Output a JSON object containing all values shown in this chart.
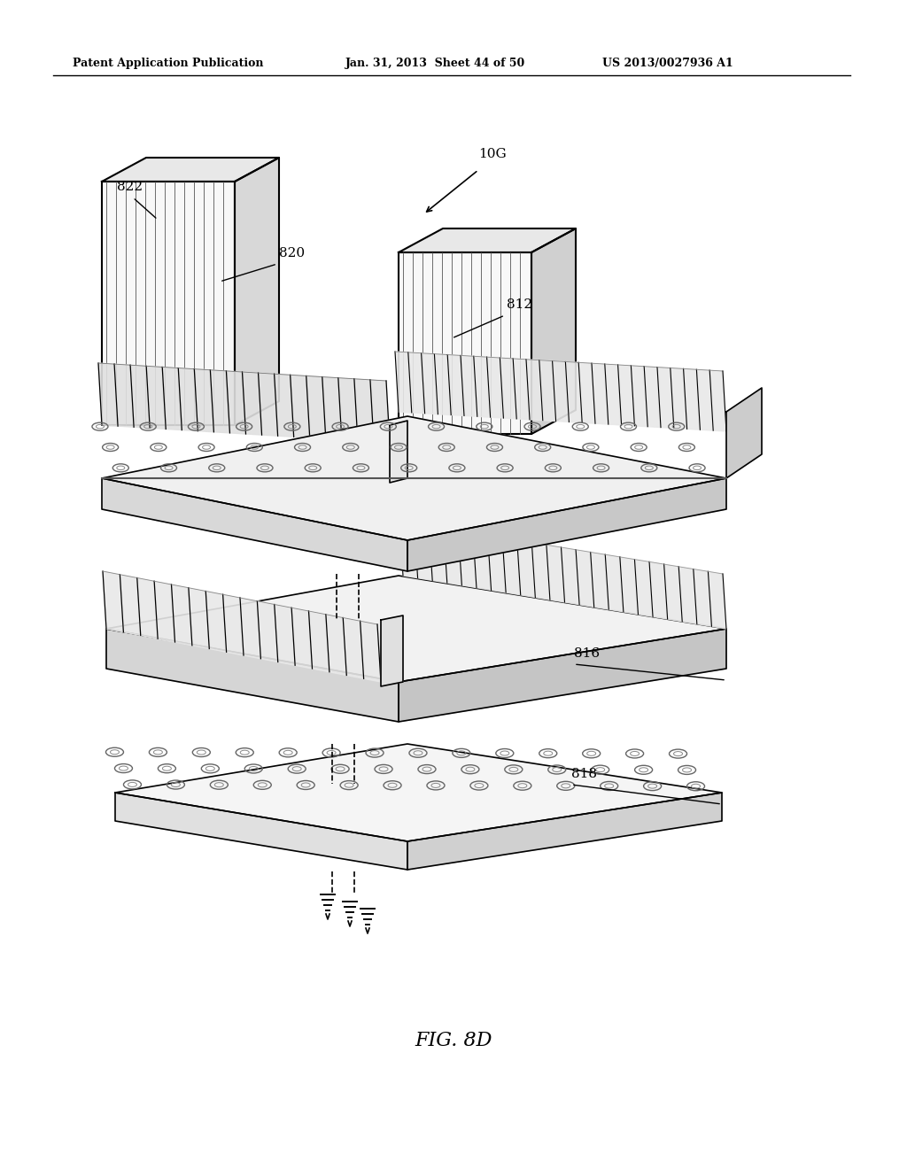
{
  "header_left": "Patent Application Publication",
  "header_mid": "Jan. 31, 2013  Sheet 44 of 50",
  "header_right": "US 2013/0027936 A1",
  "fig_label": "FIG. 8D",
  "bg_color": "#ffffff",
  "line_color": "#000000"
}
